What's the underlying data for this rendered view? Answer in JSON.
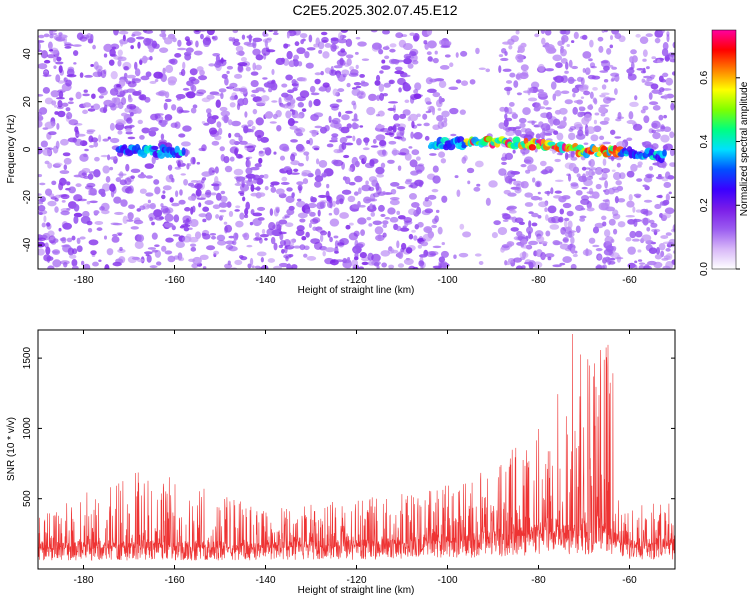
{
  "title": "C2E5.2025.302.07.45.E12",
  "chart_data": [
    {
      "type": "heatmap",
      "name": "spectrogram",
      "xlabel": "Height of straight line (km)",
      "ylabel": "Frequency (Hz)",
      "xlim": [
        -190,
        -50
      ],
      "ylim": [
        -50,
        50
      ],
      "xticks": [
        -180,
        -160,
        -140,
        -120,
        -100,
        -80,
        -60
      ],
      "yticks": [
        -40,
        -20,
        0,
        20,
        40
      ],
      "colorbar": {
        "label": "Normalized spectral amplitude",
        "range": [
          0.0,
          0.75
        ],
        "ticks": [
          0.0,
          0.2,
          0.4,
          0.6
        ],
        "colormap": [
          "#ffffff",
          "#d8b8f8",
          "#9b5cf0",
          "#7a1de8",
          "#3a00ff",
          "#0050ff",
          "#00e0ff",
          "#00ff80",
          "#7fff00",
          "#ffff00",
          "#ff8000",
          "#ff0000",
          "#ff00a0"
        ]
      },
      "ridge": {
        "description_points": [
          [
            -172,
            0
          ],
          [
            -160,
            -1
          ],
          [
            -104,
            2
          ],
          [
            -95,
            3
          ],
          [
            -88,
            3
          ],
          [
            -80,
            2
          ],
          [
            -72,
            0
          ],
          [
            -66,
            -1
          ],
          [
            -60,
            -1
          ],
          [
            -52,
            -3
          ]
        ],
        "peak_amplitude": 0.75,
        "gap": [
          -158,
          -104
        ]
      },
      "noise_gaps_km": [
        [
          -100,
          -88
        ],
        [
          -62,
          -60
        ]
      ]
    },
    {
      "type": "line",
      "name": "snr",
      "xlabel": "Height of straight line (km)",
      "ylabel": "SNR (10 * v/v)",
      "xlim": [
        -190,
        -50
      ],
      "ylim": [
        0,
        1700
      ],
      "xticks": [
        -180,
        -160,
        -140,
        -120,
        -100,
        -80,
        -60
      ],
      "yticks": [
        500,
        1000,
        1500
      ],
      "color": "#ee3333",
      "envelope": [
        {
          "x": -190,
          "base": 150,
          "peak": 380
        },
        {
          "x": -170,
          "base": 150,
          "peak": 700
        },
        {
          "x": -160,
          "base": 150,
          "peak": 660
        },
        {
          "x": -140,
          "base": 150,
          "peak": 420
        },
        {
          "x": -120,
          "base": 160,
          "peak": 500
        },
        {
          "x": -105,
          "base": 180,
          "peak": 550
        },
        {
          "x": -95,
          "base": 200,
          "peak": 650
        },
        {
          "x": -85,
          "base": 230,
          "peak": 900
        },
        {
          "x": -78,
          "base": 250,
          "peak": 1050
        },
        {
          "x": -73,
          "base": 260,
          "peak": 1700
        },
        {
          "x": -68,
          "base": 260,
          "peak": 1700
        },
        {
          "x": -64,
          "base": 250,
          "peak": 1600
        },
        {
          "x": -62,
          "base": 170,
          "peak": 450
        },
        {
          "x": -50,
          "base": 170,
          "peak": 500
        }
      ]
    }
  ]
}
